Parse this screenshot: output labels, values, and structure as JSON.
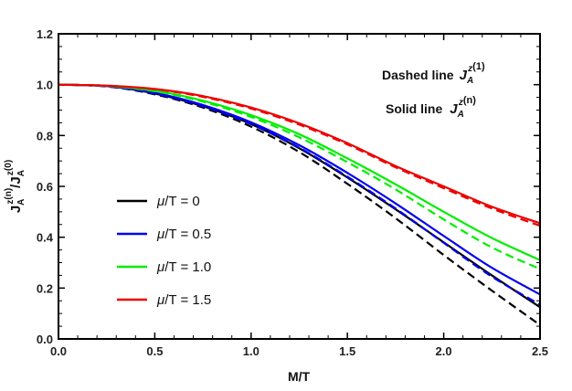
{
  "chart_data": {
    "type": "line",
    "xlabel": "M/T",
    "ylabel_main": "J",
    "ylabel_sup1": "z",
    "ylabel_super2": "(n)",
    "ylabel_sub": "A",
    "ylabel_sep": "/",
    "ylabel_main2": "J",
    "ylabel_sup3": "z",
    "ylabel_super4": "(0)",
    "ylabel_sub2": "A",
    "xlim": [
      0,
      2.5
    ],
    "ylim": [
      0,
      1.2
    ],
    "x_ticks": [
      "0.0",
      "0.5",
      "1.0",
      "1.5",
      "2.0",
      "2.5"
    ],
    "y_ticks": [
      "0.0",
      "0.2",
      "0.4",
      "0.6",
      "0.8",
      "1.0",
      "1.2"
    ],
    "annotations": {
      "dashed_text": "Dashed line",
      "solid_text": "Solid line",
      "j_main": "J",
      "j_sup": "z",
      "j_sub": "A",
      "dashed_order": "(1)",
      "solid_order": "(n)"
    },
    "legend": [
      {
        "mu": "μ",
        "rest": "/T = 0",
        "color": "#000000"
      },
      {
        "mu": "μ",
        "rest": "/T = 0.5",
        "color": "#0000ee"
      },
      {
        "mu": "μ",
        "rest": "/T = 1.0",
        "color": "#00ee00"
      },
      {
        "mu": "μ",
        "rest": "/T = 1.5",
        "color": "#ee0000"
      }
    ],
    "x": [
      0,
      0.25,
      0.5,
      0.75,
      1.0,
      1.25,
      1.5,
      1.75,
      2.0,
      2.25,
      2.5
    ],
    "series": [
      {
        "color": "#000000",
        "style": "solid",
        "values": [
          1.0,
          0.994,
          0.965,
          0.915,
          0.845,
          0.75,
          0.635,
          0.51,
          0.38,
          0.25,
          0.125
        ]
      },
      {
        "color": "#000000",
        "style": "dashed",
        "values": [
          1.0,
          0.993,
          0.962,
          0.91,
          0.835,
          0.735,
          0.61,
          0.475,
          0.33,
          0.19,
          0.055
        ]
      },
      {
        "color": "#0000ee",
        "style": "solid",
        "values": [
          1.0,
          0.994,
          0.968,
          0.92,
          0.852,
          0.762,
          0.653,
          0.533,
          0.405,
          0.28,
          0.175
        ]
      },
      {
        "color": "#0000ee",
        "style": "dashed",
        "values": [
          1.0,
          0.993,
          0.965,
          0.915,
          0.845,
          0.752,
          0.638,
          0.513,
          0.378,
          0.245,
          0.135
        ]
      },
      {
        "color": "#00ee00",
        "style": "solid",
        "values": [
          1.0,
          0.995,
          0.976,
          0.937,
          0.88,
          0.805,
          0.71,
          0.608,
          0.5,
          0.397,
          0.31
        ]
      },
      {
        "color": "#00ee00",
        "style": "dashed",
        "values": [
          1.0,
          0.995,
          0.974,
          0.933,
          0.873,
          0.793,
          0.695,
          0.588,
          0.47,
          0.36,
          0.275
        ]
      },
      {
        "color": "#ee0000",
        "style": "solid",
        "values": [
          1.0,
          0.996,
          0.983,
          0.955,
          0.91,
          0.848,
          0.77,
          0.68,
          0.6,
          0.52,
          0.455
        ]
      },
      {
        "color": "#ee0000",
        "style": "dashed",
        "values": [
          1.0,
          0.996,
          0.982,
          0.952,
          0.906,
          0.843,
          0.765,
          0.675,
          0.593,
          0.513,
          0.445
        ]
      }
    ]
  }
}
